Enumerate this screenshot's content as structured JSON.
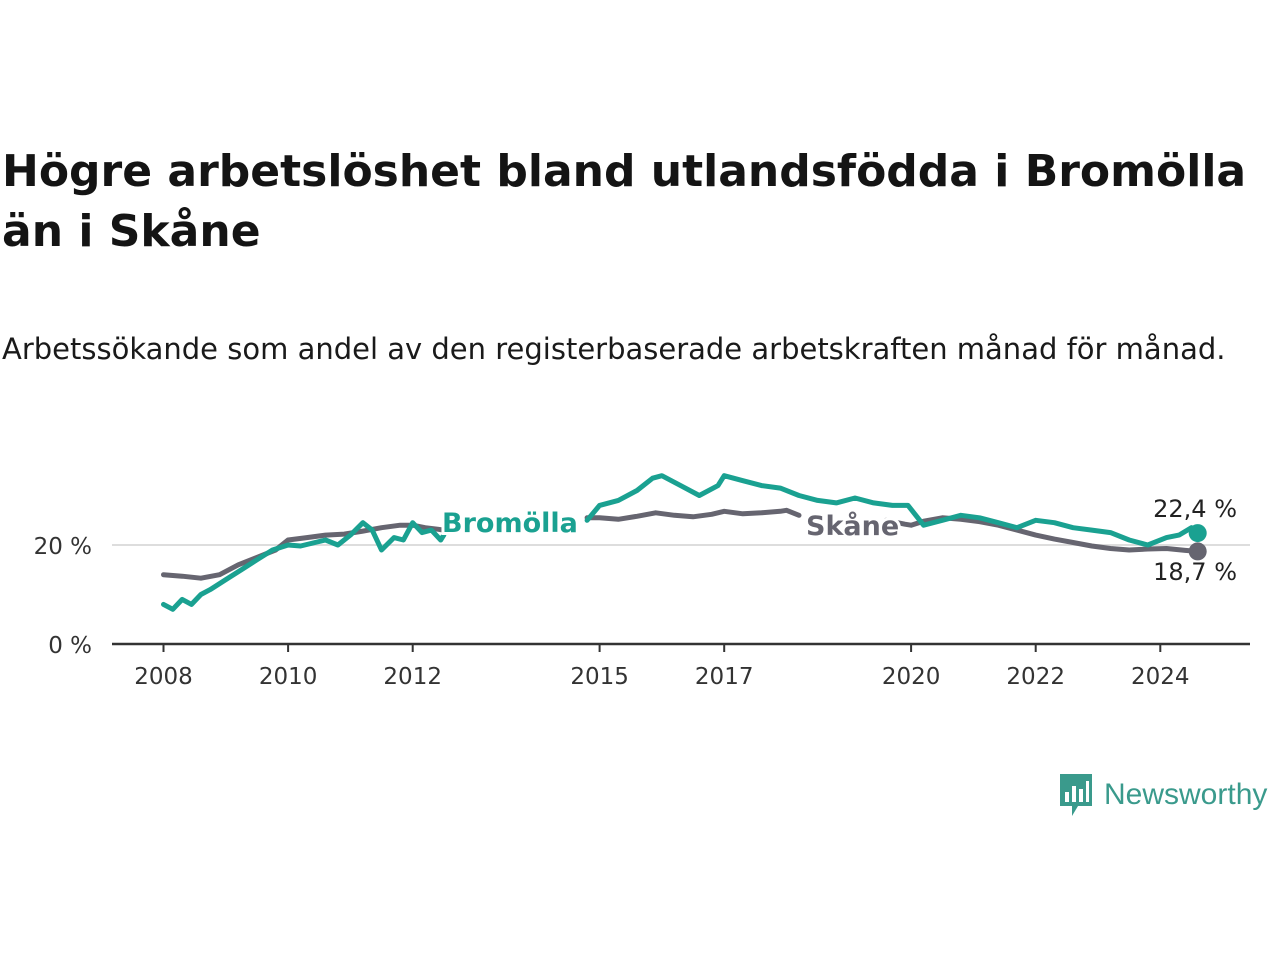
{
  "title": "Högre arbetslöshet bland utlandsfödda i Bromölla än i Skåne",
  "subtitle": "Arbetssökande som andel av den registerbaserade arbetskraften månad för månad.",
  "brand": {
    "name": "Newsworthy",
    "color": "#3a9a8c"
  },
  "chart_data": {
    "type": "line",
    "x_tick_labels": [
      "2008",
      "2010",
      "2012",
      "2015",
      "2017",
      "2020",
      "2022",
      "2024"
    ],
    "y_tick_labels": [
      "0 %",
      "20 %"
    ],
    "xlim": [
      2007.9,
      2025.4
    ],
    "ylim": [
      0,
      40
    ],
    "grid_values": [
      20
    ],
    "series": [
      {
        "name": "Bromölla",
        "color": "#1aa191",
        "end_label": "22,4 %",
        "x": [
          2008.0,
          2008.15,
          2008.3,
          2008.45,
          2008.6,
          2008.75,
          2009.0,
          2009.25,
          2009.5,
          2009.75,
          2010.0,
          2010.2,
          2010.4,
          2010.6,
          2010.8,
          2011.0,
          2011.2,
          2011.35,
          2011.5,
          2011.7,
          2011.85,
          2012.0,
          2012.15,
          2012.3,
          2012.45,
          2012.5,
          null,
          2014.8,
          2015.0,
          2015.3,
          2015.6,
          2015.85,
          2016.0,
          2016.3,
          2016.6,
          2016.9,
          2017.0,
          2017.3,
          2017.6,
          2017.9,
          2018.2,
          2018.5,
          2018.8,
          2019.1,
          2019.4,
          2019.7,
          2019.95,
          2020.2,
          2020.5,
          2020.8,
          2021.1,
          2021.4,
          2021.7,
          2022.0,
          2022.3,
          2022.6,
          2022.9,
          2023.2,
          2023.5,
          2023.8,
          2024.1,
          2024.3,
          2024.5,
          2024.6
        ],
        "y": [
          8,
          7,
          9,
          8,
          10,
          11,
          13,
          15,
          17,
          19,
          20,
          19.8,
          20.4,
          21,
          20,
          22,
          24.5,
          23,
          19,
          21.5,
          21,
          24.5,
          22.5,
          23,
          21,
          22,
          null,
          25,
          28,
          29,
          31,
          33.5,
          34,
          32,
          30,
          32,
          34,
          33,
          32,
          31.5,
          30,
          29,
          28.5,
          29.5,
          28.5,
          28,
          28,
          24,
          25,
          26,
          25.5,
          24.5,
          23.5,
          25,
          24.5,
          23.5,
          23,
          22.5,
          21,
          20,
          21.5,
          22,
          23.5,
          22.4
        ]
      },
      {
        "name": "Skåne",
        "color": "#666570",
        "end_label": "18,7 %",
        "x": [
          2008.0,
          2008.3,
          2008.6,
          2008.9,
          2009.2,
          2009.5,
          2009.8,
          2010.0,
          2010.3,
          2010.6,
          2010.9,
          2011.2,
          2011.5,
          2011.8,
          2012.0,
          2012.2,
          2012.4,
          2012.5,
          null,
          2014.8,
          2015.0,
          2015.3,
          2015.6,
          2015.9,
          2016.2,
          2016.5,
          2016.8,
          2017.0,
          2017.3,
          2017.6,
          2017.9,
          2018.0,
          2018.2,
          null,
          2019.6,
          2019.9,
          2020.0,
          2020.2,
          2020.5,
          2020.8,
          2021.1,
          2021.4,
          2021.7,
          2022.0,
          2022.3,
          2022.6,
          2022.9,
          2023.2,
          2023.5,
          2023.8,
          2024.1,
          2024.4,
          2024.6
        ],
        "y": [
          14,
          13.7,
          13.3,
          14,
          16,
          17.5,
          19,
          21,
          21.5,
          22,
          22.2,
          22.8,
          23.5,
          24,
          24,
          23.5,
          23.2,
          23,
          null,
          25.5,
          25.5,
          25.2,
          25.8,
          26.5,
          26,
          25.7,
          26.2,
          26.8,
          26.3,
          26.5,
          26.8,
          27,
          26,
          null,
          25,
          24.2,
          24,
          24.8,
          25.5,
          25.2,
          24.7,
          24,
          23,
          22,
          21.2,
          20.5,
          19.8,
          19.3,
          19,
          19.2,
          19.3,
          18.9,
          18.7
        ]
      }
    ]
  }
}
